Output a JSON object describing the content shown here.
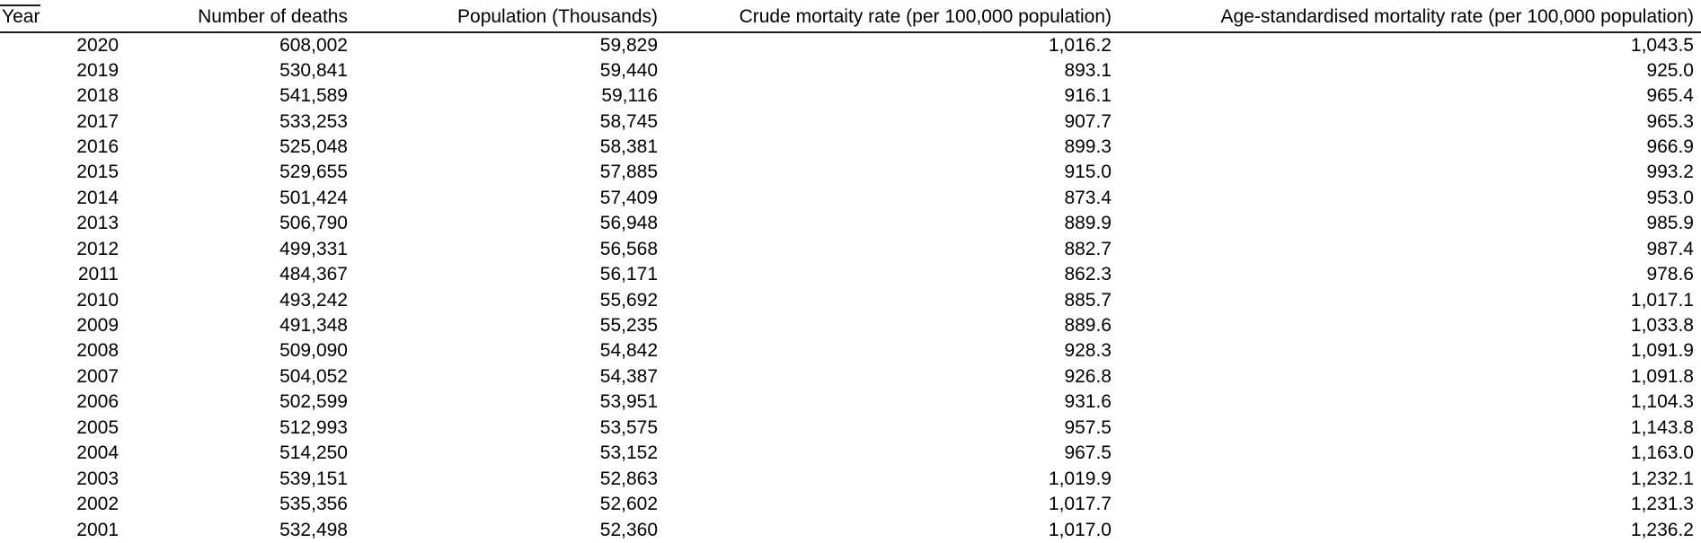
{
  "table": {
    "columns": [
      "Year",
      "Number of deaths",
      "Population (Thousands)",
      "Crude mortaity rate (per 100,000 population)",
      "Age-standardised mortality rate (per 100,000 population)"
    ],
    "rows": [
      [
        "2020",
        "608,002",
        "59,829",
        "1,016.2",
        "1,043.5"
      ],
      [
        "2019",
        "530,841",
        "59,440",
        "893.1",
        "925.0"
      ],
      [
        "2018",
        "541,589",
        "59,116",
        "916.1",
        "965.4"
      ],
      [
        "2017",
        "533,253",
        "58,745",
        "907.7",
        "965.3"
      ],
      [
        "2016",
        "525,048",
        "58,381",
        "899.3",
        "966.9"
      ],
      [
        "2015",
        "529,655",
        "57,885",
        "915.0",
        "993.2"
      ],
      [
        "2014",
        "501,424",
        "57,409",
        "873.4",
        "953.0"
      ],
      [
        "2013",
        "506,790",
        "56,948",
        "889.9",
        "985.9"
      ],
      [
        "2012",
        "499,331",
        "56,568",
        "882.7",
        "987.4"
      ],
      [
        "2011",
        "484,367",
        "56,171",
        "862.3",
        "978.6"
      ],
      [
        "2010",
        "493,242",
        "55,692",
        "885.7",
        "1,017.1"
      ],
      [
        "2009",
        "491,348",
        "55,235",
        "889.6",
        "1,033.8"
      ],
      [
        "2008",
        "509,090",
        "54,842",
        "928.3",
        "1,091.9"
      ],
      [
        "2007",
        "504,052",
        "54,387",
        "926.8",
        "1,091.8"
      ],
      [
        "2006",
        "502,599",
        "53,951",
        "931.6",
        "1,104.3"
      ],
      [
        "2005",
        "512,993",
        "53,575",
        "957.5",
        "1,143.8"
      ],
      [
        "2004",
        "514,250",
        "53,152",
        "967.5",
        "1,163.0"
      ],
      [
        "2003",
        "539,151",
        "52,863",
        "1,019.9",
        "1,232.1"
      ],
      [
        "2002",
        "535,356",
        "52,602",
        "1,017.7",
        "1,231.3"
      ],
      [
        "2001",
        "532,498",
        "52,360",
        "1,017.0",
        "1,236.2"
      ]
    ]
  },
  "chart_data": {
    "type": "table",
    "columns": [
      "Year",
      "Number of deaths",
      "Population (Thousands)",
      "Crude mortaity rate (per 100,000 population)",
      "Age-standardised mortality rate (per 100,000 population)"
    ],
    "rows": [
      [
        2020,
        608002,
        59829,
        1016.2,
        1043.5
      ],
      [
        2019,
        530841,
        59440,
        893.1,
        925.0
      ],
      [
        2018,
        541589,
        59116,
        916.1,
        965.4
      ],
      [
        2017,
        533253,
        58745,
        907.7,
        965.3
      ],
      [
        2016,
        525048,
        58381,
        899.3,
        966.9
      ],
      [
        2015,
        529655,
        57885,
        915.0,
        993.2
      ],
      [
        2014,
        501424,
        57409,
        873.4,
        953.0
      ],
      [
        2013,
        506790,
        56948,
        889.9,
        985.9
      ],
      [
        2012,
        499331,
        56568,
        882.7,
        987.4
      ],
      [
        2011,
        484367,
        56171,
        862.3,
        978.6
      ],
      [
        2010,
        493242,
        55692,
        885.7,
        1017.1
      ],
      [
        2009,
        491348,
        55235,
        889.6,
        1033.8
      ],
      [
        2008,
        509090,
        54842,
        928.3,
        1091.9
      ],
      [
        2007,
        504052,
        54387,
        926.8,
        1091.8
      ],
      [
        2006,
        502599,
        53951,
        931.6,
        1104.3
      ],
      [
        2005,
        512993,
        53575,
        957.5,
        1143.8
      ],
      [
        2004,
        514250,
        53152,
        967.5,
        1163.0
      ],
      [
        2003,
        539151,
        52863,
        1019.9,
        1232.1
      ],
      [
        2002,
        535356,
        52602,
        1017.7,
        1231.3
      ],
      [
        2001,
        532498,
        52360,
        1017.0,
        1236.2
      ]
    ],
    "layout_hints": {
      "header_rule": "full-width horizontal rule below header row",
      "grid": false,
      "number_alignment": "right",
      "year_header_alignment": "left"
    }
  },
  "colors": {
    "background": "#ffffff",
    "text": "#000000",
    "header_rule": "#1a1a1a"
  },
  "cell_names": [
    "year-cell",
    "deaths-cell",
    "population-cell",
    "crude-rate-cell",
    "age-standardised-rate-cell"
  ]
}
